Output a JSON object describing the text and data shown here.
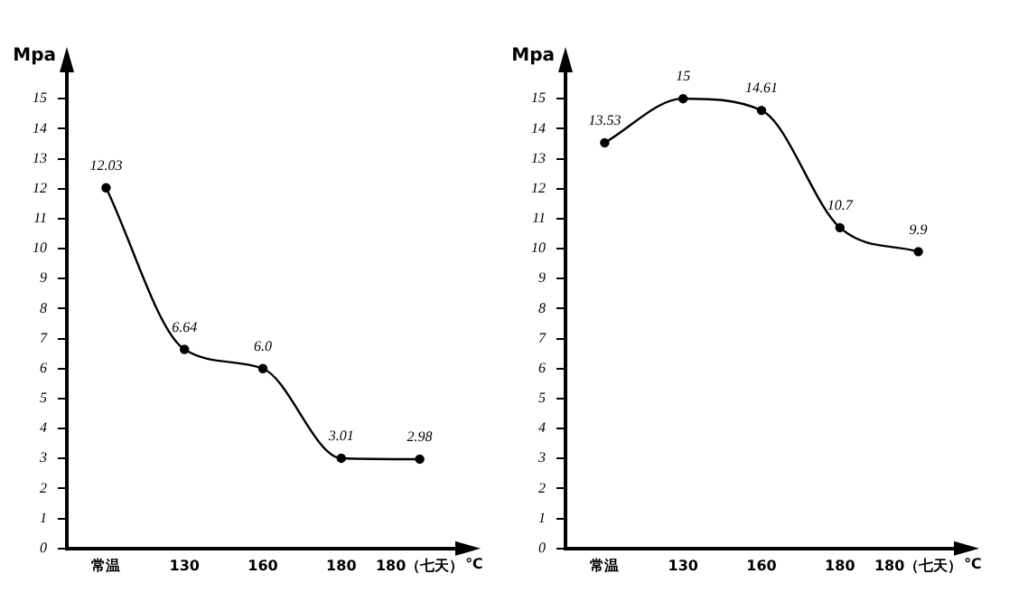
{
  "chart_data": [
    {
      "type": "line",
      "ylabel": "Mpa",
      "xlabel": "℃",
      "categories": [
        "常温",
        "130",
        "160",
        "180",
        "180（七天）"
      ],
      "ylim": [
        0,
        16
      ],
      "yticks": [
        0,
        1,
        2,
        3,
        4,
        5,
        6,
        7,
        8,
        9,
        10,
        11,
        12,
        13,
        14,
        15
      ],
      "grid": false,
      "legend": false,
      "marker": "circle",
      "line_style": "solid",
      "series": [
        {
          "color": "#000000",
          "values": [
            12.03,
            6.64,
            6.0,
            3.01,
            2.98
          ],
          "value_labels": [
            "12.03",
            "6.64",
            "6.0",
            "3.01",
            "2.98"
          ]
        }
      ]
    },
    {
      "type": "line",
      "ylabel": "Mpa",
      "xlabel": "℃",
      "categories": [
        "常温",
        "130",
        "160",
        "180",
        "180（七天）"
      ],
      "ylim": [
        0,
        16
      ],
      "yticks": [
        0,
        1,
        2,
        3,
        4,
        5,
        6,
        7,
        8,
        9,
        10,
        11,
        12,
        13,
        14,
        15
      ],
      "grid": false,
      "legend": false,
      "marker": "circle",
      "line_style": "solid",
      "series": [
        {
          "color": "#000000",
          "values": [
            13.53,
            15,
            14.61,
            10.7,
            9.9
          ],
          "value_labels": [
            "13.53",
            "15",
            "14.61",
            "10.7",
            "9.9"
          ]
        }
      ]
    }
  ]
}
